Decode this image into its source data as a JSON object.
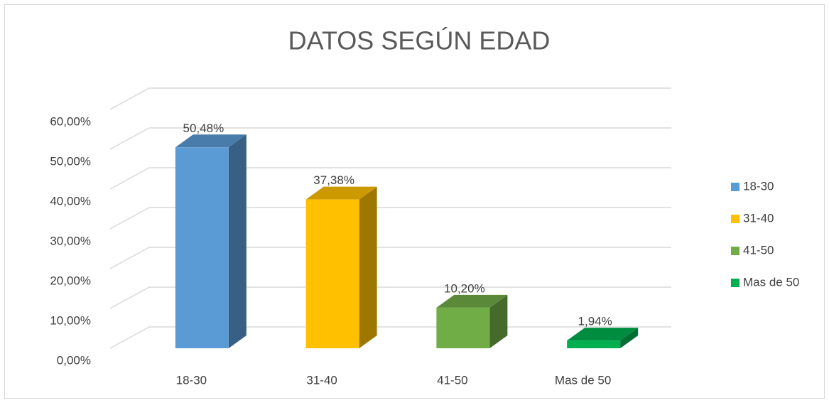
{
  "chart_data": {
    "type": "bar3d",
    "title": "DATOS SEGÚN EDAD",
    "categories": [
      "18-30",
      "31-40",
      "41-50",
      "Mas de 50"
    ],
    "values": [
      50.48,
      37.38,
      10.2,
      1.94
    ],
    "value_labels": [
      "50,48%",
      "37,38%",
      "10,20%",
      "1,94%"
    ],
    "colors": [
      "#5b9bd5",
      "#ffc000",
      "#70ad47",
      "#00b050"
    ],
    "ylim": [
      0,
      60
    ],
    "yticks": [
      {
        "value": 0,
        "label": "0,00%"
      },
      {
        "value": 10,
        "label": "10,00%"
      },
      {
        "value": 20,
        "label": "20,00%"
      },
      {
        "value": 30,
        "label": "30,00%"
      },
      {
        "value": 40,
        "label": "40,00%"
      },
      {
        "value": 50,
        "label": "50,00%"
      },
      {
        "value": 60,
        "label": "60,00%"
      }
    ],
    "grid": true,
    "legend": "right"
  }
}
